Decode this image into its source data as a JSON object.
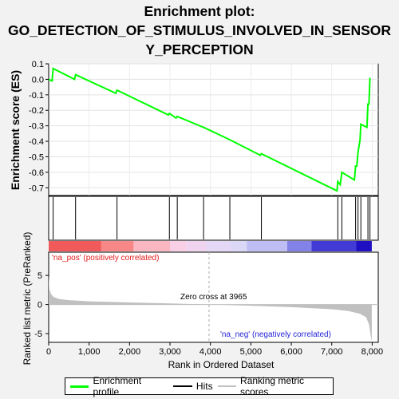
{
  "title_line1": "Enrichment plot:",
  "title_line2": "GO_DETECTION_OF_STIMULUS_INVOLVED_IN_SENSOR",
  "title_line3": "Y_PERCEPTION",
  "colors": {
    "enrichment_line": "#00ff00",
    "hits": "#000000",
    "metric_fill": "#c0c0c0",
    "pos_label": "#e31a1c",
    "neg_label": "#1f1fd6"
  },
  "chart_data": [
    {
      "type": "line",
      "name": "enrichment-profile",
      "ylabel": "Enrichment score (ES)",
      "xlim": [
        0,
        8150
      ],
      "ylim": [
        -0.75,
        0.1
      ],
      "yticks": [
        0.1,
        0.0,
        -0.1,
        -0.2,
        -0.3,
        -0.4,
        -0.5,
        -0.6,
        -0.7
      ],
      "ytick_labels": [
        "0.1",
        "0.0",
        "-0.1",
        "-0.2",
        "-0.3",
        "-0.4",
        "-0.5",
        "-0.6",
        "-0.7"
      ],
      "grid": true,
      "x": [
        0,
        85,
        110,
        640,
        665,
        1660,
        1690,
        2960,
        2985,
        3150,
        3180,
        3830,
        4480,
        5230,
        5260,
        7130,
        7150,
        7210,
        7250,
        7560,
        7590,
        7620,
        7650,
        7700,
        7720,
        7870,
        7895,
        7920,
        7945
      ],
      "y": [
        0.0,
        -0.01,
        0.07,
        0.0,
        0.03,
        -0.09,
        -0.07,
        -0.23,
        -0.22,
        -0.25,
        -0.24,
        -0.31,
        -0.39,
        -0.49,
        -0.48,
        -0.72,
        -0.66,
        -0.68,
        -0.6,
        -0.65,
        -0.56,
        -0.56,
        -0.47,
        -0.39,
        -0.29,
        -0.31,
        -0.16,
        -0.16,
        0.01
      ]
    },
    {
      "type": "scatter",
      "name": "hits",
      "x": [
        110,
        665,
        1690,
        2985,
        3180,
        3830,
        4480,
        5260,
        7150,
        7250,
        7590,
        7650,
        7720,
        7895,
        7945
      ]
    },
    {
      "type": "area",
      "name": "ranked-list-metric",
      "xlabel": "Rank in Ordered Dataset",
      "ylabel": "Ranked list metric (PreRanked)",
      "xlim": [
        0,
        8150
      ],
      "ylim": [
        -6.5,
        9
      ],
      "yticks": [
        5,
        0,
        -5
      ],
      "ytick_labels": [
        "5",
        "0",
        "-5"
      ],
      "xticks": [
        0,
        1000,
        2000,
        3000,
        4000,
        5000,
        6000,
        7000,
        8000
      ],
      "xtick_labels": [
        "0",
        "1,000",
        "2,000",
        "3,000",
        "4,000",
        "5,000",
        "6,000",
        "7,000",
        "8,000"
      ],
      "x": [
        0,
        20,
        60,
        120,
        250,
        500,
        1000,
        2000,
        3000,
        3965,
        5000,
        6000,
        7000,
        7400,
        7700,
        7850,
        7920,
        7960,
        7990
      ],
      "y": [
        5.0,
        2.6,
        1.8,
        1.3,
        0.95,
        0.75,
        0.55,
        0.35,
        0.18,
        0.0,
        -0.2,
        -0.45,
        -0.8,
        -1.1,
        -1.6,
        -2.2,
        -3.4,
        -5.2,
        -6.4
      ],
      "zero_cross_label": "Zero cross at 3965",
      "zero_cross": 3965,
      "pos_label": "'na_pos' (positively correlated)",
      "neg_label": "'na_neg' (negatively correlated)"
    }
  ],
  "legend": {
    "items": [
      {
        "label": "Enrichment profile",
        "color": "#00ff00"
      },
      {
        "label": "Hits",
        "color": "#000000"
      },
      {
        "label": "Ranking metric scores",
        "color": "#c0c0c0"
      }
    ]
  }
}
